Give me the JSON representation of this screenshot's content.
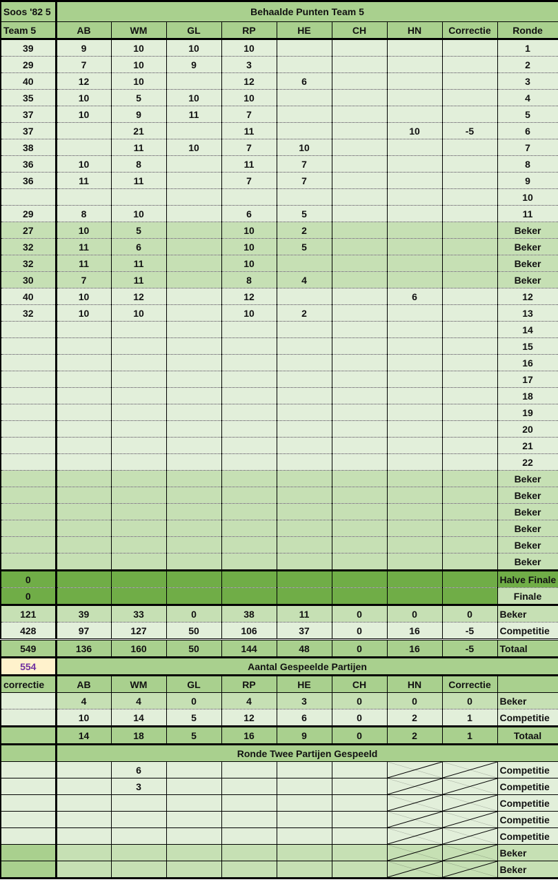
{
  "title_left": "Soos '82 5",
  "title_main": "Behaalde Punten Team 5",
  "colors": {
    "light": "#e2efda",
    "medium": "#c6e0b4",
    "header": "#a9d08e",
    "dark": "#70ad47",
    "highlight": "#fff2cc",
    "highlight_text": "#7030a0"
  },
  "points": {
    "headers": [
      "Team 5",
      "AB",
      "WM",
      "GL",
      "RP",
      "HE",
      "CH",
      "HN",
      "Correctie",
      "Ronde"
    ],
    "rows": [
      {
        "type": "competitie",
        "cells": [
          "39",
          "9",
          "10",
          "10",
          "10",
          "",
          "",
          "",
          "",
          "1"
        ]
      },
      {
        "type": "competitie",
        "cells": [
          "29",
          "7",
          "10",
          "9",
          "3",
          "",
          "",
          "",
          "",
          "2"
        ]
      },
      {
        "type": "competitie",
        "cells": [
          "40",
          "12",
          "10",
          "",
          "12",
          "6",
          "",
          "",
          "",
          "3"
        ]
      },
      {
        "type": "competitie",
        "cells": [
          "35",
          "10",
          "5",
          "10",
          "10",
          "",
          "",
          "",
          "",
          "4"
        ]
      },
      {
        "type": "competitie",
        "cells": [
          "37",
          "10",
          "9",
          "11",
          "7",
          "",
          "",
          "",
          "",
          "5"
        ]
      },
      {
        "type": "competitie",
        "cells": [
          "37",
          "",
          "21",
          "",
          "11",
          "",
          "",
          "10",
          "-5",
          "6"
        ]
      },
      {
        "type": "competitie",
        "cells": [
          "38",
          "",
          "11",
          "10",
          "7",
          "10",
          "",
          "",
          "",
          "7"
        ]
      },
      {
        "type": "competitie",
        "cells": [
          "36",
          "10",
          "8",
          "",
          "11",
          "7",
          "",
          "",
          "",
          "8"
        ]
      },
      {
        "type": "competitie",
        "cells": [
          "36",
          "11",
          "11",
          "",
          "7",
          "7",
          "",
          "",
          "",
          "9"
        ]
      },
      {
        "type": "competitie",
        "cells": [
          "",
          "",
          "",
          "",
          "",
          "",
          "",
          "",
          "",
          "10"
        ]
      },
      {
        "type": "competitie",
        "cells": [
          "29",
          "8",
          "10",
          "",
          "6",
          "5",
          "",
          "",
          "",
          "11"
        ]
      },
      {
        "type": "beker",
        "cells": [
          "27",
          "10",
          "5",
          "",
          "10",
          "2",
          "",
          "",
          "",
          "Beker"
        ]
      },
      {
        "type": "beker",
        "cells": [
          "32",
          "11",
          "6",
          "",
          "10",
          "5",
          "",
          "",
          "",
          "Beker"
        ]
      },
      {
        "type": "beker",
        "cells": [
          "32",
          "11",
          "11",
          "",
          "10",
          "",
          "",
          "",
          "",
          "Beker"
        ]
      },
      {
        "type": "beker",
        "cells": [
          "30",
          "7",
          "11",
          "",
          "8",
          "4",
          "",
          "",
          "",
          "Beker"
        ]
      },
      {
        "type": "competitie",
        "cells": [
          "40",
          "10",
          "12",
          "",
          "12",
          "",
          "",
          "6",
          "",
          "12"
        ]
      },
      {
        "type": "competitie",
        "cells": [
          "32",
          "10",
          "10",
          "",
          "10",
          "2",
          "",
          "",
          "",
          "13"
        ]
      },
      {
        "type": "competitie",
        "cells": [
          "",
          "",
          "",
          "",
          "",
          "",
          "",
          "",
          "",
          "14"
        ]
      },
      {
        "type": "competitie",
        "cells": [
          "",
          "",
          "",
          "",
          "",
          "",
          "",
          "",
          "",
          "15"
        ]
      },
      {
        "type": "competitie",
        "cells": [
          "",
          "",
          "",
          "",
          "",
          "",
          "",
          "",
          "",
          "16"
        ]
      },
      {
        "type": "competitie",
        "cells": [
          "",
          "",
          "",
          "",
          "",
          "",
          "",
          "",
          "",
          "17"
        ]
      },
      {
        "type": "competitie",
        "cells": [
          "",
          "",
          "",
          "",
          "",
          "",
          "",
          "",
          "",
          "18"
        ]
      },
      {
        "type": "competitie",
        "cells": [
          "",
          "",
          "",
          "",
          "",
          "",
          "",
          "",
          "",
          "19"
        ]
      },
      {
        "type": "competitie",
        "cells": [
          "",
          "",
          "",
          "",
          "",
          "",
          "",
          "",
          "",
          "20"
        ]
      },
      {
        "type": "competitie",
        "cells": [
          "",
          "",
          "",
          "",
          "",
          "",
          "",
          "",
          "",
          "21"
        ]
      },
      {
        "type": "competitie",
        "cells": [
          "",
          "",
          "",
          "",
          "",
          "",
          "",
          "",
          "",
          "22"
        ]
      },
      {
        "type": "beker",
        "cells": [
          "",
          "",
          "",
          "",
          "",
          "",
          "",
          "",
          "",
          "Beker"
        ]
      },
      {
        "type": "beker",
        "cells": [
          "",
          "",
          "",
          "",
          "",
          "",
          "",
          "",
          "",
          "Beker"
        ]
      },
      {
        "type": "beker",
        "cells": [
          "",
          "",
          "",
          "",
          "",
          "",
          "",
          "",
          "",
          "Beker"
        ]
      },
      {
        "type": "beker",
        "cells": [
          "",
          "",
          "",
          "",
          "",
          "",
          "",
          "",
          "",
          "Beker"
        ]
      },
      {
        "type": "beker",
        "cells": [
          "",
          "",
          "",
          "",
          "",
          "",
          "",
          "",
          "",
          "Beker"
        ]
      },
      {
        "type": "beker",
        "cells": [
          "",
          "",
          "",
          "",
          "",
          "",
          "",
          "",
          "",
          "Beker"
        ]
      }
    ],
    "finals": [
      {
        "cells": [
          "0",
          "",
          "",
          "",
          "",
          "",
          "",
          "",
          "",
          "Halve Finale"
        ]
      },
      {
        "cells": [
          "0",
          "",
          "",
          "",
          "",
          "",
          "",
          "",
          "",
          "Finale"
        ]
      }
    ],
    "totals": [
      {
        "type": "beker",
        "cells": [
          "121",
          "39",
          "33",
          "0",
          "38",
          "11",
          "0",
          "0",
          "0",
          "Beker"
        ]
      },
      {
        "type": "competitie",
        "cells": [
          "428",
          "97",
          "127",
          "50",
          "106",
          "37",
          "0",
          "16",
          "-5",
          "Competitie"
        ]
      },
      {
        "type": "totaal",
        "cells": [
          "549",
          "136",
          "160",
          "50",
          "144",
          "48",
          "0",
          "16",
          "-5",
          "Totaal"
        ]
      }
    ]
  },
  "grand_total": "554",
  "games": {
    "title": "Aantal Gespeelde Partijen",
    "headers": [
      "correctie",
      "AB",
      "WM",
      "GL",
      "RP",
      "HE",
      "CH",
      "HN",
      "Correctie",
      ""
    ],
    "rows": [
      {
        "type": "beker",
        "cells": [
          "",
          "4",
          "4",
          "0",
          "4",
          "3",
          "0",
          "0",
          "0",
          "Beker"
        ]
      },
      {
        "type": "competitie",
        "cells": [
          "",
          "10",
          "14",
          "5",
          "12",
          "6",
          "0",
          "2",
          "1",
          "Competitie"
        ]
      },
      {
        "type": "totaal",
        "cells": [
          "",
          "14",
          "18",
          "5",
          "16",
          "9",
          "0",
          "2",
          "1",
          "Totaal"
        ]
      }
    ]
  },
  "round_two": {
    "title": "Ronde Twee Partijen Gespeeld",
    "rows": [
      {
        "type": "competitie",
        "cells": [
          "",
          "",
          "6",
          "",
          "",
          "",
          "",
          "",
          "",
          "Competitie"
        ]
      },
      {
        "type": "competitie",
        "cells": [
          "",
          "",
          "3",
          "",
          "",
          "",
          "",
          "",
          "",
          "Competitie"
        ]
      },
      {
        "type": "competitie",
        "cells": [
          "",
          "",
          "",
          "",
          "",
          "",
          "",
          "",
          "",
          "Competitie"
        ]
      },
      {
        "type": "competitie",
        "cells": [
          "",
          "",
          "",
          "",
          "",
          "",
          "",
          "",
          "",
          "Competitie"
        ]
      },
      {
        "type": "competitie",
        "cells": [
          "",
          "",
          "",
          "",
          "",
          "",
          "",
          "",
          "",
          "Competitie"
        ]
      },
      {
        "type": "beker",
        "cells": [
          "",
          "",
          "",
          "",
          "",
          "",
          "",
          "",
          "",
          "Beker"
        ]
      },
      {
        "type": "beker",
        "cells": [
          "",
          "",
          "",
          "",
          "",
          "",
          "",
          "",
          "",
          "Beker"
        ]
      }
    ]
  }
}
